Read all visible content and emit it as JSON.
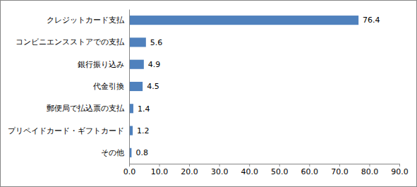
{
  "chart_data": {
    "type": "bar",
    "orientation": "horizontal",
    "categories": [
      "クレジットカード支払",
      "コンビニエンスストアでの支払",
      "銀行振り込み",
      "代金引換",
      "郵便局で払込票の支払",
      "プリペイドカード・ギフトカード",
      "その他"
    ],
    "values": [
      76.4,
      5.6,
      4.9,
      4.5,
      1.4,
      1.2,
      0.8
    ],
    "color": "#4f81bd",
    "xlim": [
      0,
      90
    ],
    "xticks": [
      {
        "value": 0,
        "label": "0.0"
      },
      {
        "value": 10,
        "label": "10.0"
      },
      {
        "value": 20,
        "label": "20.0"
      },
      {
        "value": 30,
        "label": "30.0"
      },
      {
        "value": 40,
        "label": "40.0"
      },
      {
        "value": 50,
        "label": "50.0"
      },
      {
        "value": 60,
        "label": "60.0"
      },
      {
        "value": 70,
        "label": "70.0"
      },
      {
        "value": 80,
        "label": "80.0"
      },
      {
        "value": 90,
        "label": "90.0"
      }
    ],
    "grid": false,
    "data_labels": true
  }
}
